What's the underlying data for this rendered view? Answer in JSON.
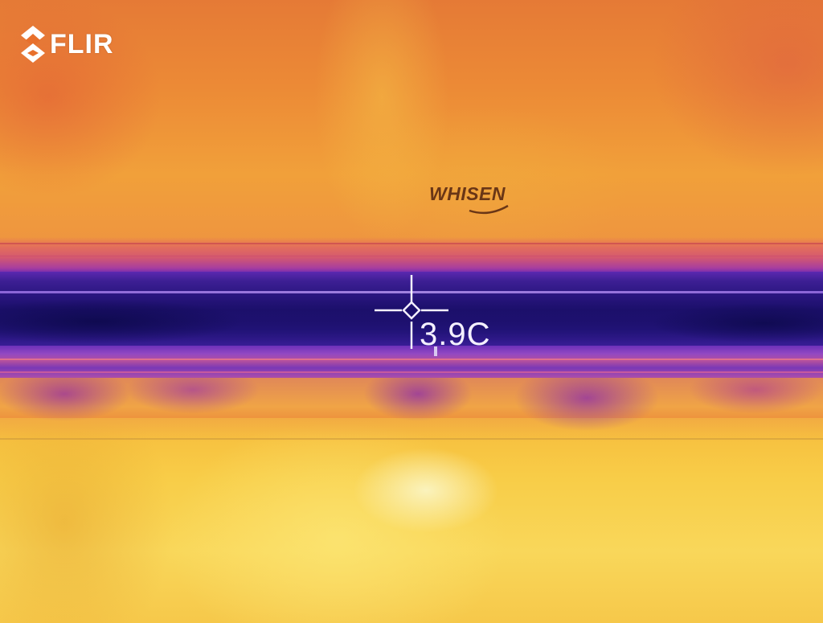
{
  "logo": {
    "text": "FLIR",
    "icon": "flir-diamond-icon"
  },
  "scene": {
    "brand_text": "WHISEN"
  },
  "measurement": {
    "spot_temperature": "3.9C",
    "crosshair_icon": "spot-meter-crosshair-icon"
  },
  "palette": {
    "hot": "#f9d75a",
    "warm": "#ec8a36",
    "cold": "#1c0f6c",
    "overlay_text": "#ffffff"
  }
}
